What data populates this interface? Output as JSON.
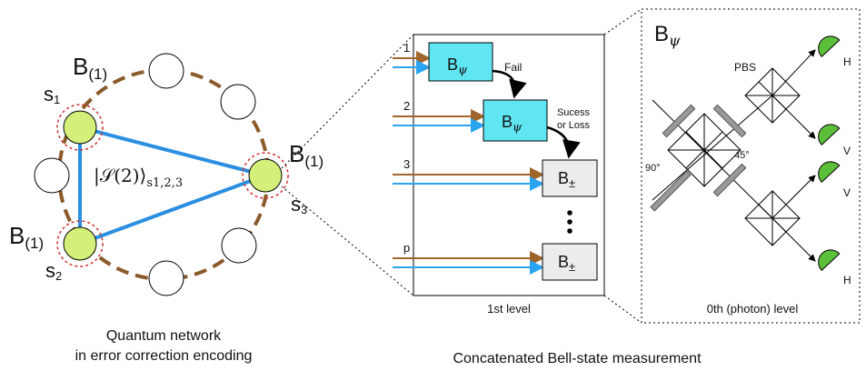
{
  "left": {
    "nodes": [
      {
        "label": {
          "base": "B",
          "sub": "(1)"
        },
        "site": {
          "base": "s",
          "sub": "1"
        }
      },
      {
        "label": {
          "base": "B",
          "sub": "(1)"
        },
        "site": {
          "base": "s",
          "sub": "2"
        }
      },
      {
        "label": {
          "base": "B",
          "sub": "(1)"
        },
        "site": {
          "base": "s",
          "sub": "3"
        }
      }
    ],
    "state": {
      "base": "|𝒮(2)⟩",
      "sub": "s1,2,3"
    },
    "caption": [
      "Quantum network",
      "in error correction encoding"
    ]
  },
  "middle": {
    "inputs": [
      "1",
      "2",
      "3",
      "p"
    ],
    "boxes": [
      {
        "base": "B",
        "sub": "ψ"
      },
      {
        "base": "B",
        "sub": "ψ"
      },
      {
        "base": "B",
        "sub": "±"
      },
      {
        "base": "B",
        "sub": "±"
      }
    ],
    "fail": "Fail",
    "success": [
      "Sucess",
      "or Loss"
    ],
    "level": "1st level"
  },
  "right": {
    "title": {
      "base": "B",
      "sub": "ψ"
    },
    "pbs": "PBS",
    "detectors": [
      "H",
      "V",
      "V",
      "H"
    ],
    "angles": [
      "90°",
      "45°"
    ],
    "level": "0th (photon) level"
  },
  "caption": "Concatenated Bell-state measurement"
}
